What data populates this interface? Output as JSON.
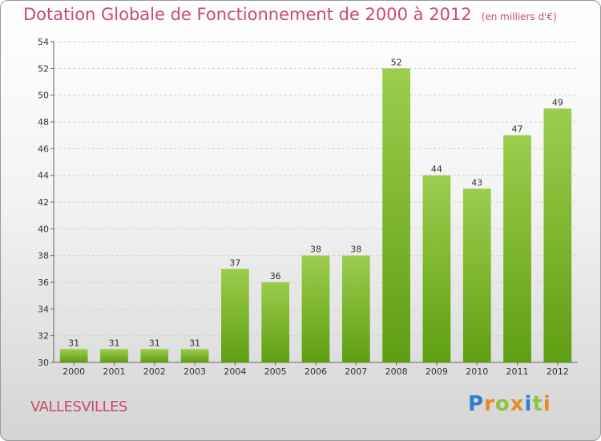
{
  "title": "Dotation Globale de Fonctionnement de 2000 à 2012",
  "subtitle": "(en milliers d'€)",
  "commune": "VALLESVILLES",
  "logo": {
    "text": "Proxiti",
    "letters": [
      {
        "ch": "P",
        "color": "#2f7fcf"
      },
      {
        "ch": "r",
        "color": "#e8892a"
      },
      {
        "ch": "o",
        "color": "#8cc63f"
      },
      {
        "ch": "x",
        "color": "#e8892a"
      },
      {
        "ch": "i",
        "color": "#2f7fcf"
      },
      {
        "ch": "t",
        "color": "#8cc63f"
      },
      {
        "ch": "i",
        "color": "#e8892a"
      }
    ]
  },
  "chart_data": {
    "type": "bar",
    "categories": [
      "2000",
      "2001",
      "2002",
      "2003",
      "2004",
      "2005",
      "2006",
      "2007",
      "2008",
      "2009",
      "2010",
      "2011",
      "2012"
    ],
    "values": [
      31,
      31,
      31,
      31,
      37,
      36,
      38,
      38,
      52,
      44,
      43,
      47,
      49
    ],
    "ylim": [
      30,
      54
    ],
    "yticks": [
      30,
      32,
      34,
      36,
      38,
      40,
      42,
      44,
      46,
      48,
      50,
      52,
      54
    ],
    "grid": true,
    "bar_color_top": "#9ccd4e",
    "bar_color_bottom": "#5f9e12"
  }
}
